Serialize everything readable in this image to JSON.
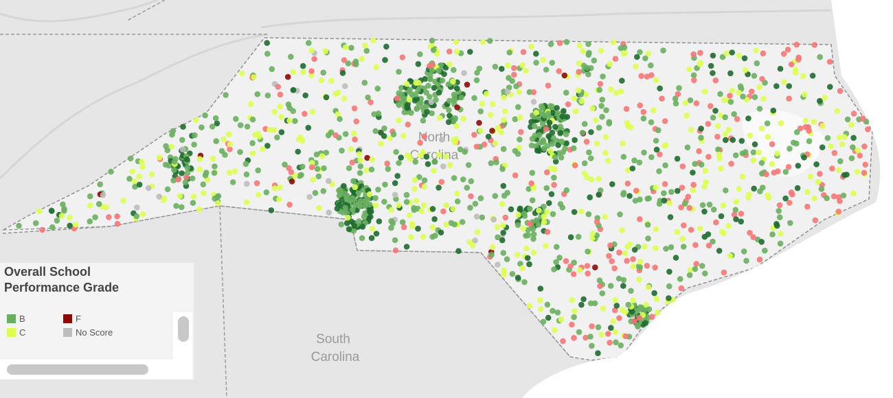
{
  "map_labels": {
    "north_carolina": [
      "North",
      "Carolina"
    ],
    "south_carolina": [
      "South",
      "Carolina"
    ]
  },
  "legend": {
    "title": [
      "Overall School",
      "Performance Grade"
    ],
    "items": [
      {
        "name": "B",
        "color": "#6aaf61"
      },
      {
        "name": "F",
        "color": "#8b0a0a"
      },
      {
        "name": "C",
        "color": "#ddff55"
      },
      {
        "name": "No Score",
        "color": "#bdbdbd"
      }
    ]
  }
}
